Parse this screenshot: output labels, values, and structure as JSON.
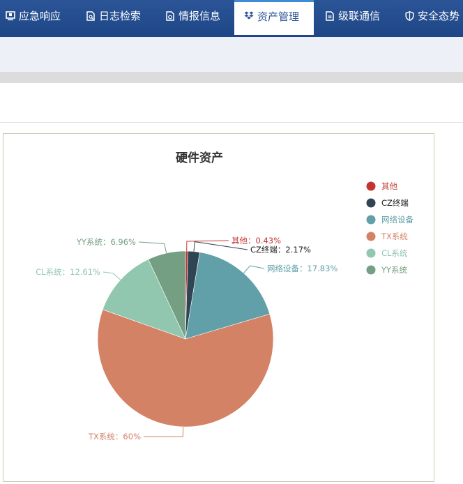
{
  "nav": {
    "items": [
      {
        "label": "应急响应",
        "icon": "monitor-icon"
      },
      {
        "label": "日志检索",
        "icon": "document-search-icon"
      },
      {
        "label": "情报信息",
        "icon": "document-info-icon"
      },
      {
        "label": "资产管理",
        "icon": "dropbox-icon",
        "active": true
      },
      {
        "label": "级联通信",
        "icon": "document-link-icon"
      },
      {
        "label": "安全态势",
        "icon": "shield-icon"
      }
    ]
  },
  "colors": {
    "nav_bg": "#24508f",
    "nav_active_text": "#2b5597",
    "subbar_bg": "#eef0f7"
  },
  "chart_data": {
    "type": "pie",
    "title": "硬件资产",
    "legend_position": "right",
    "slices": [
      {
        "name": "其他",
        "value": 0.43,
        "label": "其他：0.43%",
        "color": "#c23531"
      },
      {
        "name": "CZ终端",
        "value": 2.17,
        "label": "CZ终端：2.17%",
        "color": "#2f4554"
      },
      {
        "name": "网络设备",
        "value": 17.83,
        "label": "网络设备：17.83%",
        "color": "#61a0a8"
      },
      {
        "name": "TX系统",
        "value": 60,
        "label": "TX系统：60%",
        "color": "#d48265"
      },
      {
        "name": "CL系统",
        "value": 12.61,
        "label": "CL系统：12.61%",
        "color": "#91c7ae"
      },
      {
        "name": "YY系统",
        "value": 6.96,
        "label": "YY系统：6.96%",
        "color": "#749f83"
      }
    ]
  }
}
